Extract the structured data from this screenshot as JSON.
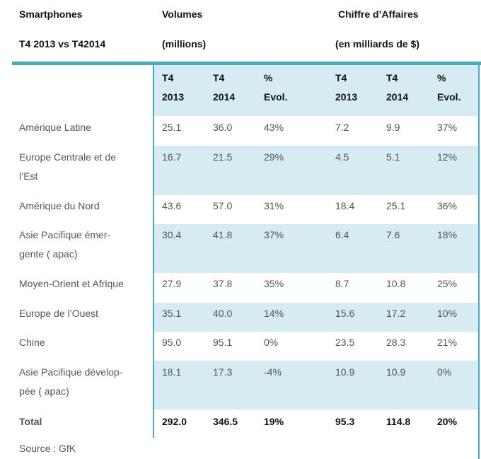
{
  "header": {
    "smartphones": "Smartphones",
    "period": "T4 2013 vs T42014",
    "volumes": "Volumes",
    "volumes_unit": "(millions)",
    "ca": "Chiffre d’Affaires",
    "ca_unit": "(en milliards de $)"
  },
  "columns": [
    {
      "line1": "T4",
      "line2": "2013"
    },
    {
      "line1": "T4",
      "line2": "2014"
    },
    {
      "line1": "%",
      "line2": "Evol."
    },
    {
      "line1": "T4",
      "line2": "2013"
    },
    {
      "line1": "T4",
      "line2": "2014"
    },
    {
      "line1": "%",
      "line2": "Evol."
    }
  ],
  "rows": [
    {
      "label": "Amérique Latine",
      "values": [
        "25.1",
        "36.0",
        "43%",
        "7.2",
        "9.9",
        "37%"
      ]
    },
    {
      "label": "Europe Centrale et de l’Est",
      "values": [
        "16.7",
        "21.5",
        "29%",
        "4.5",
        "5.1",
        "12%"
      ]
    },
    {
      "label": "Amérique du Nord",
      "values": [
        "43.6",
        "57.0",
        "31%",
        "18.4",
        "25.1",
        "36%"
      ]
    },
    {
      "label": "Asie Pacifique émer-gente  ( apac)",
      "values": [
        "30.4",
        "41.8",
        "37%",
        "6.4",
        "7.6",
        "18%"
      ]
    },
    {
      "label": "Moyen-Orient et Afrique",
      "values": [
        "27.9",
        "37.8",
        "35%",
        "8.7",
        "10.8",
        "25%"
      ]
    },
    {
      "label": "Europe de l’Ouest",
      "values": [
        "35.1",
        "40.0",
        "14%",
        "15.6",
        "17.2",
        "10%"
      ]
    },
    {
      "label": "Chine",
      "values": [
        "95.0",
        "95.1",
        "0%",
        "23.5",
        "28.3",
        "21%"
      ]
    },
    {
      "label": "Asie Pacifique dévelop-pée ( apac)",
      "values": [
        "18.1",
        "17.3",
        "-4%",
        "10.9",
        "10.9",
        "0%"
      ]
    }
  ],
  "total": {
    "label": "Total",
    "values": [
      "292.0",
      "346.5",
      "19%",
      "95.3",
      "114.8",
      "20%"
    ]
  },
  "source": "Source : GfK"
}
